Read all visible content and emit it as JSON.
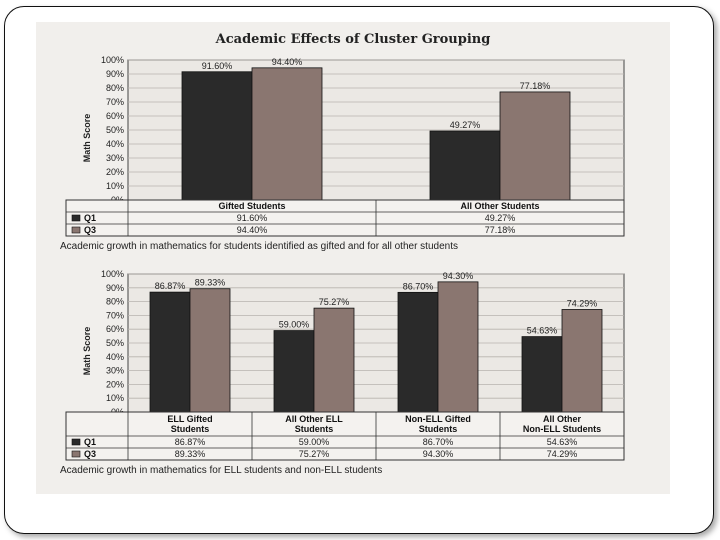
{
  "chart_data": [
    {
      "type": "bar",
      "title": "Academic Effects of Cluster Grouping",
      "ylabel": "Math Score",
      "ylim": [
        0,
        100
      ],
      "yticks": [
        "0%",
        "10%",
        "20%",
        "30%",
        "40%",
        "50%",
        "60%",
        "70%",
        "80%",
        "90%",
        "100%"
      ],
      "categories": [
        "Gifted Students",
        "All Other Students"
      ],
      "series": [
        {
          "name": "Q1",
          "values": [
            91.6,
            49.27
          ],
          "labels": [
            "91.60%",
            "49.27%"
          ],
          "color": "#2a2a2a"
        },
        {
          "name": "Q3",
          "values": [
            94.4,
            77.18
          ],
          "labels": [
            "94.40%",
            "77.18%"
          ],
          "color": "#8a7670"
        }
      ],
      "caption": "Academic growth in mathematics for students identified as gifted and for all other students"
    },
    {
      "type": "bar",
      "ylabel": "Math Score",
      "ylim": [
        0,
        100
      ],
      "yticks": [
        "0%",
        "10%",
        "20%",
        "30%",
        "40%",
        "50%",
        "60%",
        "70%",
        "80%",
        "90%",
        "100%"
      ],
      "categories": [
        "ELL Gifted Students",
        "All Other ELL Students",
        "Non-ELL Gifted Students",
        "All Other Non-ELL Students"
      ],
      "series": [
        {
          "name": "Q1",
          "values": [
            86.87,
            59.0,
            86.7,
            54.63
          ],
          "labels": [
            "86.87%",
            "59.00%",
            "86.70%",
            "54.63%"
          ],
          "color": "#2a2a2a"
        },
        {
          "name": "Q3",
          "values": [
            89.33,
            75.27,
            94.3,
            74.29
          ],
          "labels": [
            "89.33%",
            "75.27%",
            "94.30%",
            "74.29%"
          ],
          "color": "#8a7670"
        }
      ],
      "caption": "Academic growth in mathematics for ELL students and non-ELL students"
    }
  ]
}
